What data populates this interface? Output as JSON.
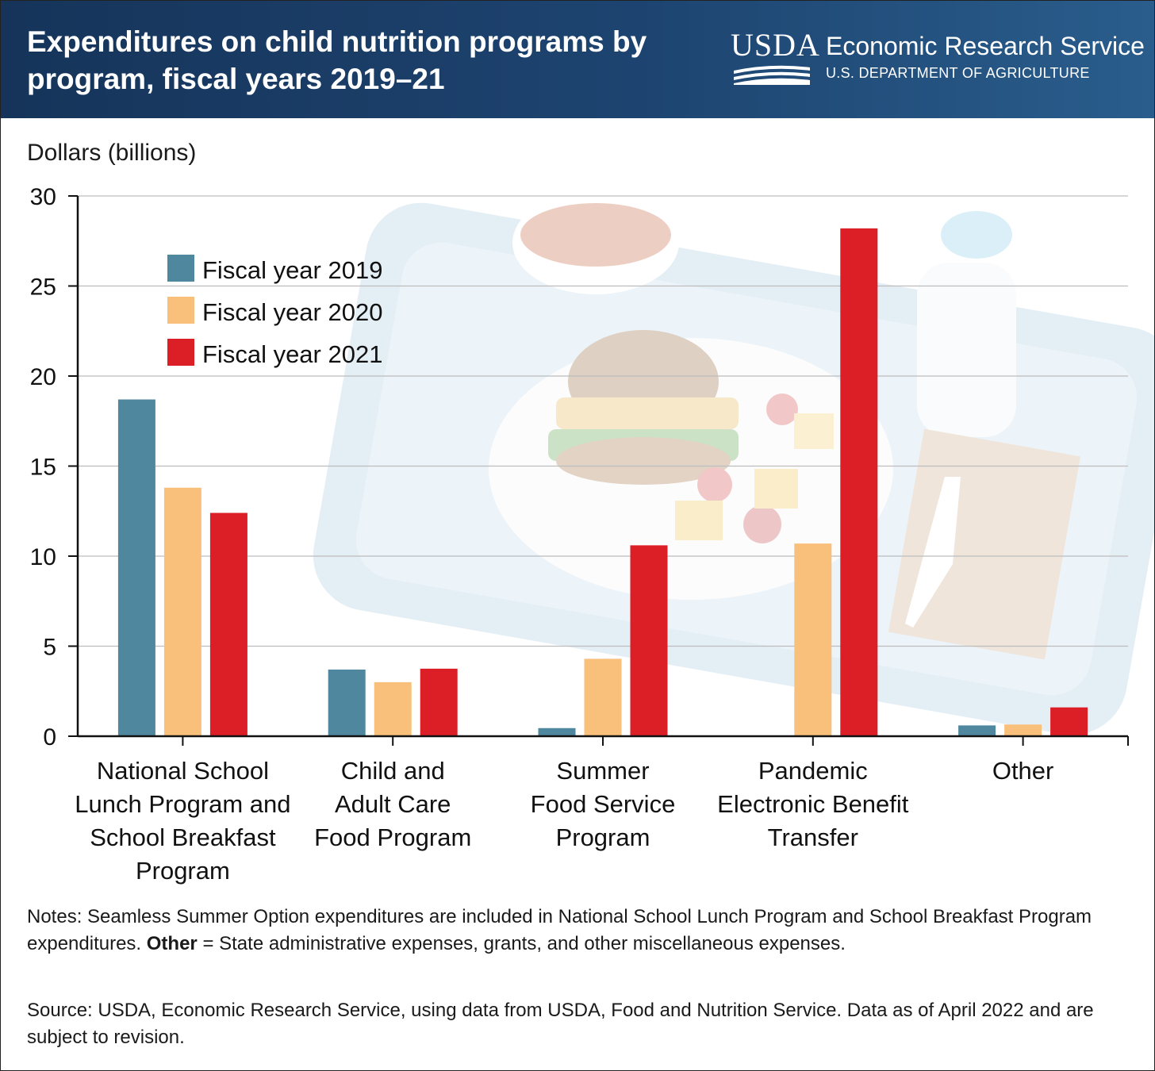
{
  "header": {
    "title": "Expenditures on child nutrition programs by program, fiscal years 2019–21",
    "logo_usda": "USDA",
    "logo_agency": "Economic Research Service",
    "logo_department": "U.S. DEPARTMENT OF AGRICULTURE"
  },
  "colors": {
    "header_bg": "#1d4470",
    "fy2019": "#4f879e",
    "fy2020": "#f9c07c",
    "fy2021": "#dc1f26"
  },
  "chart_data": {
    "type": "bar",
    "ylabel": "Dollars (billions)",
    "ylim": [
      0,
      30
    ],
    "yticks": [
      0,
      5,
      10,
      15,
      20,
      25,
      30
    ],
    "grid": true,
    "legend_position": "top-left",
    "categories": [
      [
        "National School",
        "Lunch Program and",
        "School Breakfast",
        "Program"
      ],
      [
        "Child and",
        "Adult Care",
        "Food Program"
      ],
      [
        "Summer",
        "Food Service",
        "Program"
      ],
      [
        "Pandemic",
        "Electronic Benefit",
        "Transfer"
      ],
      [
        "Other"
      ]
    ],
    "series": [
      {
        "name": "Fiscal year 2019",
        "color": "#4f879e",
        "values": [
          18.7,
          3.7,
          0.45,
          0,
          0.6
        ]
      },
      {
        "name": "Fiscal year 2020",
        "color": "#f9c07c",
        "values": [
          13.8,
          3.0,
          4.3,
          10.7,
          0.65
        ]
      },
      {
        "name": "Fiscal year 2021",
        "color": "#dc1f26",
        "values": [
          12.4,
          3.75,
          10.6,
          28.2,
          1.6
        ]
      }
    ],
    "background_image": "school lunch tray"
  },
  "notes": {
    "prefix": "Notes: Seamless Summer Option expenditures are included in National School Lunch Program and School Breakfast Program expenditures. ",
    "bold": "Other",
    "suffix": " = State administrative expenses, grants, and other miscellaneous expenses."
  },
  "source": "Source: USDA, Economic Research Service, using data from USDA, Food and Nutrition Service. Data as of April 2022 and are subject to revision."
}
